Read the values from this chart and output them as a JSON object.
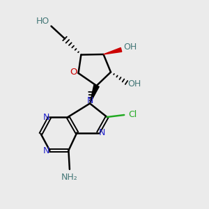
{
  "background_color": "#ebebeb",
  "bond_color": "#000000",
  "N_color": "#2222cc",
  "O_color": "#cc0000",
  "Cl_color": "#22aa22",
  "OH_color": "#447777",
  "NH2_color": "#447777",
  "figsize": [
    3.0,
    3.0
  ],
  "dpi": 100,
  "xlim": [
    0,
    10
  ],
  "ylim": [
    0,
    10
  ]
}
